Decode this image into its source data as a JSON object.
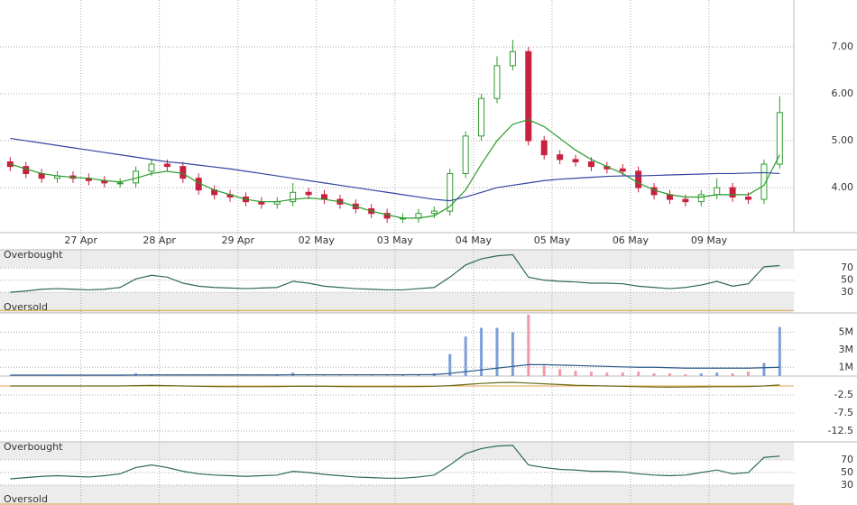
{
  "chart_data": [
    {
      "type": "candlestick",
      "x": [
        0.1,
        0.3,
        0.5,
        0.7,
        0.9,
        1.1,
        1.3,
        1.5,
        1.7,
        1.9,
        2.1,
        2.3,
        2.5,
        2.7,
        2.9,
        3.1,
        3.3,
        3.5,
        3.7,
        3.9,
        4.1,
        4.3,
        4.5,
        4.7,
        4.9,
        5.1,
        5.3,
        5.5,
        5.7,
        5.9,
        6.1,
        6.3,
        6.5,
        6.7,
        6.9,
        7.1,
        7.3,
        7.5,
        7.7,
        7.9,
        8.1,
        8.3,
        8.5,
        8.7,
        8.9,
        9.1,
        9.3,
        9.5,
        9.7,
        9.9
      ],
      "xlim": [
        -0.03,
        10.08
      ],
      "xticks": [
        {
          "value": 1,
          "label": "27 Apr"
        },
        {
          "value": 2,
          "label": "28 Apr"
        },
        {
          "value": 3,
          "label": "29 Apr"
        },
        {
          "value": 4,
          "label": "02 May"
        },
        {
          "value": 5,
          "label": "03 May"
        },
        {
          "value": 6,
          "label": "04 May"
        },
        {
          "value": 7,
          "label": "05 May"
        },
        {
          "value": 8,
          "label": "06 May"
        },
        {
          "value": 9,
          "label": "09 May"
        }
      ],
      "ylim": [
        3.04,
        8.0
      ],
      "yticks": [
        {
          "value": 4,
          "label": "4.00"
        },
        {
          "value": 5,
          "label": "5.00"
        },
        {
          "value": 6,
          "label": "6.00"
        },
        {
          "value": 7,
          "label": "7.00"
        }
      ],
      "grid": true,
      "up_color": "#2f9a2f",
      "down_color": "#c8203f",
      "open": [
        4.55,
        4.45,
        4.3,
        4.2,
        4.25,
        4.2,
        4.15,
        4.1,
        4.1,
        4.35,
        4.5,
        4.45,
        4.2,
        3.95,
        3.85,
        3.8,
        3.7,
        3.65,
        3.7,
        3.9,
        3.85,
        3.75,
        3.65,
        3.55,
        3.45,
        3.35,
        3.35,
        3.45,
        3.5,
        4.3,
        5.1,
        5.9,
        6.6,
        6.9,
        5.0,
        4.7,
        4.6,
        4.55,
        4.45,
        4.4,
        4.35,
        4.0,
        3.85,
        3.75,
        3.7,
        3.85,
        4.0,
        3.8,
        3.75,
        4.5
      ],
      "high": [
        4.65,
        4.55,
        4.4,
        4.35,
        4.35,
        4.3,
        4.25,
        4.2,
        4.45,
        4.6,
        4.6,
        4.55,
        4.3,
        4.05,
        3.95,
        3.9,
        3.8,
        3.8,
        4.1,
        4.0,
        3.95,
        3.85,
        3.75,
        3.65,
        3.55,
        3.45,
        3.55,
        3.6,
        4.4,
        5.2,
        6.0,
        6.8,
        7.15,
        7.0,
        5.1,
        4.8,
        4.7,
        4.65,
        4.55,
        4.5,
        4.45,
        4.1,
        3.95,
        3.85,
        3.95,
        4.2,
        4.1,
        3.9,
        4.6,
        5.95
      ],
      "low": [
        4.35,
        4.2,
        4.1,
        4.1,
        4.1,
        4.05,
        4.0,
        4.0,
        4.0,
        4.25,
        4.35,
        4.1,
        3.85,
        3.75,
        3.7,
        3.6,
        3.55,
        3.55,
        3.6,
        3.75,
        3.65,
        3.55,
        3.45,
        3.35,
        3.25,
        3.25,
        3.25,
        3.35,
        3.4,
        4.2,
        5.0,
        5.8,
        6.5,
        4.9,
        4.6,
        4.5,
        4.45,
        4.35,
        4.3,
        4.25,
        3.9,
        3.75,
        3.65,
        3.6,
        3.6,
        3.75,
        3.7,
        3.65,
        3.65,
        4.4
      ],
      "close": [
        4.45,
        4.3,
        4.2,
        4.25,
        4.2,
        4.15,
        4.1,
        4.1,
        4.35,
        4.5,
        4.45,
        4.2,
        3.95,
        3.85,
        3.8,
        3.7,
        3.65,
        3.7,
        3.9,
        3.85,
        3.75,
        3.65,
        3.55,
        3.45,
        3.35,
        3.35,
        3.45,
        3.5,
        4.3,
        5.1,
        5.9,
        6.6,
        6.9,
        5.0,
        4.7,
        4.6,
        4.55,
        4.45,
        4.4,
        4.35,
        4.0,
        3.85,
        3.75,
        3.7,
        3.85,
        4.0,
        3.8,
        3.75,
        4.5,
        5.6
      ],
      "series": [
        {
          "color": "#2a9a2a",
          "values": [
            4.5,
            4.4,
            4.3,
            4.25,
            4.22,
            4.2,
            4.15,
            4.12,
            4.2,
            4.3,
            4.35,
            4.3,
            4.1,
            3.95,
            3.85,
            3.75,
            3.7,
            3.7,
            3.75,
            3.78,
            3.75,
            3.7,
            3.6,
            3.5,
            3.42,
            3.35,
            3.35,
            3.4,
            3.6,
            3.95,
            4.5,
            5.0,
            5.35,
            5.45,
            5.3,
            5.05,
            4.8,
            4.6,
            4.45,
            4.3,
            4.1,
            3.95,
            3.85,
            3.8,
            3.8,
            3.85,
            3.85,
            3.85,
            4.05,
            4.7
          ]
        },
        {
          "color": "#3344a0",
          "values": [
            5.05,
            5.0,
            4.95,
            4.9,
            4.85,
            4.8,
            4.75,
            4.7,
            4.65,
            4.6,
            4.55,
            4.52,
            4.48,
            4.44,
            4.4,
            4.35,
            4.3,
            4.25,
            4.2,
            4.15,
            4.1,
            4.05,
            4.0,
            3.95,
            3.9,
            3.85,
            3.8,
            3.75,
            3.72,
            3.8,
            3.9,
            4.0,
            4.05,
            4.1,
            4.15,
            4.18,
            4.2,
            4.22,
            4.24,
            4.25,
            4.25,
            4.26,
            4.27,
            4.28,
            4.29,
            4.3,
            4.3,
            4.31,
            4.32,
            4.3
          ]
        }
      ]
    },
    {
      "type": "line",
      "ylim": [
        -4,
        100
      ],
      "yticks": [
        70,
        50,
        30
      ],
      "annotations": [
        {
          "text": "Overbought",
          "value": 70
        },
        {
          "text": "Oversold",
          "value": 30
        }
      ],
      "series": [
        {
          "color": "#2d6b50",
          "values": [
            30,
            32,
            35,
            36,
            35,
            34,
            35,
            38,
            52,
            58,
            55,
            45,
            40,
            38,
            37,
            36,
            37,
            38,
            48,
            45,
            40,
            38,
            36,
            35,
            34,
            34,
            36,
            38,
            55,
            75,
            85,
            90,
            92,
            55,
            50,
            48,
            47,
            45,
            45,
            44,
            40,
            38,
            36,
            38,
            42,
            48,
            40,
            44,
            72,
            74
          ]
        }
      ]
    },
    {
      "type": "bar",
      "ylim": [
        0,
        7200000
      ],
      "yticks": [
        {
          "value": 1000000,
          "label": "1M"
        },
        {
          "value": 3000000,
          "label": "3M"
        },
        {
          "value": 5000000,
          "label": "5M"
        }
      ],
      "up_color": "#7d9fd8",
      "down_color": "#ee9aaa",
      "values": [
        100000,
        50000,
        100000,
        80000,
        100000,
        50000,
        100000,
        100000,
        300000,
        200000,
        100000,
        100000,
        150000,
        100000,
        100000,
        100000,
        100000,
        150000,
        400000,
        100000,
        100000,
        100000,
        100000,
        100000,
        150000,
        100000,
        200000,
        300000,
        2500000,
        4500000,
        5500000,
        5500000,
        5000000,
        7000000,
        1200000,
        800000,
        600000,
        500000,
        400000,
        400000,
        500000,
        300000,
        300000,
        200000,
        300000,
        400000,
        300000,
        500000,
        1500000,
        5600000
      ],
      "series": [
        {
          "color": "#2a5a8a",
          "values": [
            100000,
            100000,
            100000,
            100000,
            100000,
            100000,
            100000,
            100000,
            120000,
            130000,
            130000,
            130000,
            130000,
            130000,
            130000,
            130000,
            130000,
            130000,
            150000,
            150000,
            150000,
            150000,
            150000,
            150000,
            150000,
            150000,
            160000,
            170000,
            300000,
            500000,
            700000,
            900000,
            1100000,
            1300000,
            1300000,
            1250000,
            1200000,
            1150000,
            1100000,
            1050000,
            1000000,
            1000000,
            950000,
            900000,
            900000,
            900000,
            900000,
            900000,
            950000,
            1000000
          ]
        }
      ]
    },
    {
      "type": "line",
      "ylim": [
        -15.5,
        2.75
      ],
      "yticks": [
        -2.5,
        -7.5,
        -12.5
      ],
      "series": [
        {
          "color": "#6b6b1e",
          "values": [
            0,
            0,
            0,
            0,
            0,
            0,
            0,
            0,
            0.1,
            0.15,
            0.1,
            0,
            -0.1,
            -0.15,
            -0.2,
            -0.2,
            -0.2,
            -0.15,
            -0.1,
            -0.1,
            -0.1,
            -0.15,
            -0.2,
            -0.2,
            -0.2,
            -0.2,
            -0.15,
            -0.1,
            0.1,
            0.4,
            0.7,
            0.9,
            1.0,
            0.8,
            0.6,
            0.4,
            0.2,
            0.1,
            0,
            -0.1,
            -0.2,
            -0.3,
            -0.35,
            -0.3,
            -0.25,
            -0.2,
            -0.2,
            -0.15,
            0,
            0.3
          ]
        }
      ]
    },
    {
      "type": "line",
      "ylim": [
        -1.4,
        98.6
      ],
      "yticks": [
        70,
        50,
        30
      ],
      "annotations": [
        {
          "text": "Overbought",
          "value": 70
        },
        {
          "text": "Oversold",
          "value": 30
        }
      ],
      "series": [
        {
          "color": "#2d6b50",
          "values": [
            40,
            42,
            44,
            45,
            44,
            43,
            45,
            48,
            58,
            62,
            58,
            52,
            48,
            46,
            45,
            44,
            45,
            46,
            52,
            50,
            47,
            45,
            43,
            42,
            41,
            41,
            43,
            46,
            62,
            80,
            88,
            92,
            93,
            62,
            58,
            55,
            54,
            52,
            52,
            51,
            48,
            46,
            45,
            46,
            50,
            54,
            48,
            50,
            74,
            76
          ]
        }
      ]
    }
  ]
}
